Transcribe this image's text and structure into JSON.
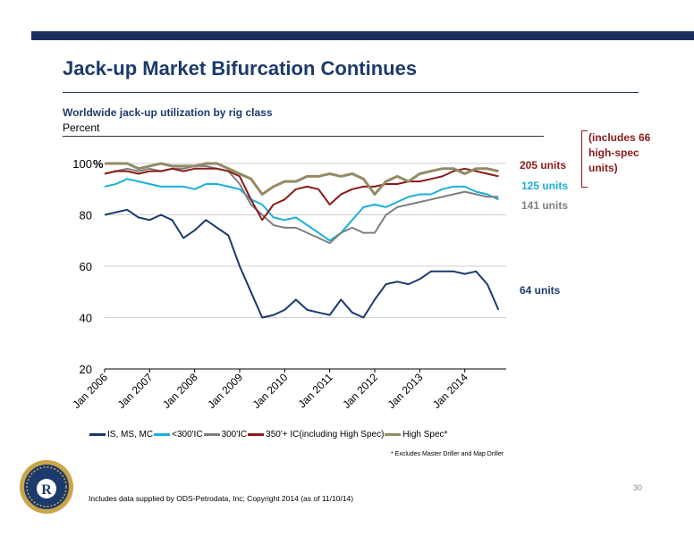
{
  "slide": {
    "title": "Jack-up Market Bifurcation Continues",
    "page_number": "30",
    "source": "Includes data supplied by ODS-Petrodata, Inc; Copyright 2014 (as of 11/10/14)",
    "footnote": "* Excludes Master Driller and Map Driller"
  },
  "chart_data": {
    "type": "line",
    "title": "Worldwide jack-up utilization by rig class",
    "ylabel": "Percent",
    "ylim": [
      20,
      100
    ],
    "y_ticks": [
      "20",
      "40",
      "60",
      "80",
      "100"
    ],
    "y_top_suffix": "%",
    "x_ticks": [
      "Jan 2006",
      "Jan 2007",
      "Jan 2008",
      "Jan 2009",
      "Jan 2010",
      "Jan 2011",
      "Jan 2012",
      "Jan 2013",
      "Jan 2014"
    ],
    "grid": true,
    "legend_position": "bottom",
    "x": [
      "2006-01",
      "2006-04",
      "2006-07",
      "2006-10",
      "2007-01",
      "2007-04",
      "2007-07",
      "2007-10",
      "2008-01",
      "2008-04",
      "2008-07",
      "2008-10",
      "2009-01",
      "2009-04",
      "2009-07",
      "2009-10",
      "2010-01",
      "2010-04",
      "2010-07",
      "2010-10",
      "2011-01",
      "2011-04",
      "2011-07",
      "2011-10",
      "2012-01",
      "2012-04",
      "2012-07",
      "2012-10",
      "2013-01",
      "2013-04",
      "2013-07",
      "2013-10",
      "2014-01",
      "2014-04",
      "2014-07",
      "2014-10"
    ],
    "series": [
      {
        "name": "IS, MS, MC",
        "color": "#1c3a6b",
        "values": [
          80,
          81,
          82,
          79,
          78,
          80,
          78,
          71,
          74,
          78,
          75,
          72,
          60,
          50,
          40,
          41,
          43,
          47,
          43,
          42,
          41,
          47,
          42,
          40,
          47,
          53,
          54,
          53,
          55,
          58,
          58,
          58,
          57,
          58,
          53,
          43
        ]
      },
      {
        "name": "<300'IC",
        "color": "#1ab0d8",
        "values": [
          91,
          92,
          94,
          93,
          92,
          91,
          91,
          91,
          90,
          92,
          92,
          91,
          90,
          86,
          84,
          79,
          78,
          79,
          76,
          73,
          70,
          73,
          78,
          83,
          84,
          83,
          85,
          87,
          88,
          88,
          90,
          91,
          91,
          89,
          88,
          86
        ]
      },
      {
        "name": "300'IC",
        "color": "#7f7f7f",
        "values": [
          96,
          97,
          98,
          97,
          98,
          97,
          98,
          98,
          99,
          99,
          98,
          97,
          92,
          84,
          80,
          76,
          75,
          75,
          73,
          71,
          69,
          73,
          75,
          73,
          73,
          80,
          83,
          84,
          85,
          86,
          87,
          88,
          89,
          88,
          87,
          87
        ]
      },
      {
        "name": "350'+ IC(including High Spec)",
        "color": "#8b1a1a",
        "values": [
          96,
          97,
          97,
          96,
          97,
          97,
          98,
          97,
          98,
          98,
          98,
          97,
          95,
          86,
          78,
          84,
          86,
          90,
          91,
          90,
          84,
          88,
          90,
          91,
          91,
          92,
          92,
          93,
          93,
          94,
          95,
          97,
          98,
          97,
          96,
          95
        ]
      },
      {
        "name": "High Spec*",
        "color": "#948a64",
        "values": [
          100,
          100,
          100,
          98,
          99,
          100,
          99,
          99,
          99,
          100,
          100,
          98,
          96,
          94,
          88,
          91,
          93,
          93,
          95,
          95,
          96,
          95,
          96,
          94,
          88,
          93,
          95,
          93,
          96,
          97,
          98,
          98,
          96,
          98,
          98,
          97
        ]
      }
    ],
    "annotations": {
      "high_spec": "205 units",
      "under_300": "125 units",
      "ic_300": "141 units",
      "is_ms_mc": "64 units",
      "bracket_note": "(includes 66 high-spec units)"
    }
  }
}
